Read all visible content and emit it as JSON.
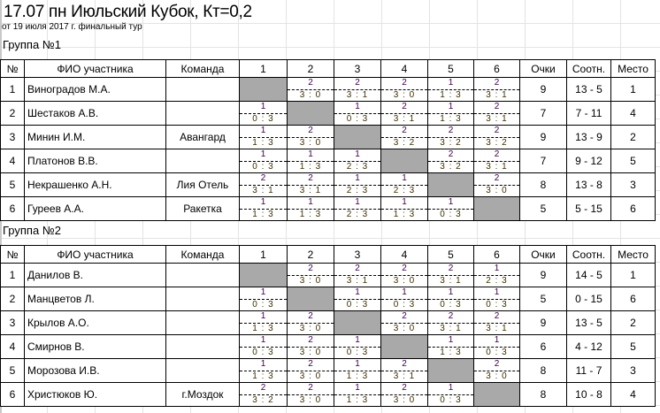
{
  "title": "17.07 пн Июльский Кубок, Кт=0,2",
  "subtitle": "от 19 июля 2017 г. финальный тур",
  "headers": {
    "num": "№",
    "name": "ФИО участника",
    "team": "Команда",
    "cols": [
      "1",
      "2",
      "3",
      "4",
      "5",
      "6"
    ],
    "points": "Очки",
    "ratio": "Соотн.",
    "place": "Место"
  },
  "colors": {
    "self_cell": "#a9a9a9",
    "points_text": "#3a0048",
    "score_text": "#3d3000"
  },
  "groups": [
    {
      "label": "Группа №1",
      "rows": [
        {
          "num": "1",
          "name": "Виноградов М.А.",
          "team": "",
          "results": [
            null,
            [
              "2",
              "3 : 0"
            ],
            [
              "2",
              "3 : 1"
            ],
            [
              "2",
              "3 : 0"
            ],
            [
              "1",
              "1 : 3"
            ],
            [
              "2",
              "3 : 1"
            ]
          ],
          "points": "9",
          "ratio": "13 - 5",
          "place": "1"
        },
        {
          "num": "2",
          "name": "Шестаков А.В.",
          "team": "",
          "results": [
            [
              "1",
              "0 : 3"
            ],
            null,
            [
              "1",
              "0 : 3"
            ],
            [
              "2",
              "3 : 1"
            ],
            [
              "1",
              "1 : 3"
            ],
            [
              "2",
              "3 : 1"
            ]
          ],
          "points": "7",
          "ratio": "7 - 11",
          "place": "4"
        },
        {
          "num": "3",
          "name": "Минин И.М.",
          "team": "Авангард",
          "results": [
            [
              "1",
              "1 : 3"
            ],
            [
              "2",
              "3 : 0"
            ],
            null,
            [
              "2",
              "3 : 2"
            ],
            [
              "2",
              "3 : 2"
            ],
            [
              "2",
              "3 : 2"
            ]
          ],
          "points": "9",
          "ratio": "13 - 9",
          "place": "2"
        },
        {
          "num": "4",
          "name": "Платонов В.В.",
          "team": "",
          "results": [
            [
              "1",
              "0 : 3"
            ],
            [
              "1",
              "1 : 3"
            ],
            [
              "1",
              "2 : 3"
            ],
            null,
            [
              "2",
              "3 : 2"
            ],
            [
              "2",
              "3 : 1"
            ]
          ],
          "points": "7",
          "ratio": "9 - 12",
          "place": "5"
        },
        {
          "num": "5",
          "name": "Некрашенко А.Н.",
          "team": "Лия Отель",
          "results": [
            [
              "2",
              "3 : 1"
            ],
            [
              "2",
              "3 : 1"
            ],
            [
              "1",
              "2 : 3"
            ],
            [
              "1",
              "2 : 3"
            ],
            null,
            [
              "2",
              "3 : 0"
            ]
          ],
          "points": "8",
          "ratio": "13 - 8",
          "place": "3"
        },
        {
          "num": "6",
          "name": "Гуреев А.А.",
          "team": "Ракетка",
          "results": [
            [
              "1",
              "1 : 3"
            ],
            [
              "1",
              "1 : 3"
            ],
            [
              "1",
              "2 : 3"
            ],
            [
              "1",
              "1 : 3"
            ],
            [
              "1",
              "0 : 3"
            ],
            null
          ],
          "points": "5",
          "ratio": "5 - 15",
          "place": "6"
        }
      ]
    },
    {
      "label": "Группа №2",
      "rows": [
        {
          "num": "1",
          "name": "Данилов В.",
          "team": "",
          "results": [
            null,
            [
              "2",
              "3 : 0"
            ],
            [
              "2",
              "3 : 1"
            ],
            [
              "2",
              "3 : 0"
            ],
            [
              "2",
              "3 : 1"
            ],
            [
              "1",
              "2 : 3"
            ]
          ],
          "points": "9",
          "ratio": "14 - 5",
          "place": "1"
        },
        {
          "num": "2",
          "name": "Манцветов Л.",
          "team": "",
          "results": [
            [
              "1",
              "0 : 3"
            ],
            null,
            [
              "1",
              "0 : 3"
            ],
            [
              "1",
              "0 : 3"
            ],
            [
              "1",
              "0 : 3"
            ],
            [
              "1",
              "0 : 3"
            ]
          ],
          "points": "5",
          "ratio": "0 - 15",
          "place": "6"
        },
        {
          "num": "3",
          "name": "Крылов А.О.",
          "team": "",
          "results": [
            [
              "1",
              "1 : 3"
            ],
            [
              "2",
              "3 : 0"
            ],
            null,
            [
              "2",
              "3 : 0"
            ],
            [
              "2",
              "3 : 1"
            ],
            [
              "2",
              "3 : 1"
            ]
          ],
          "points": "9",
          "ratio": "13 - 5",
          "place": "2"
        },
        {
          "num": "4",
          "name": "Смирнов В.",
          "team": "",
          "results": [
            [
              "1",
              "0 : 3"
            ],
            [
              "2",
              "3 : 0"
            ],
            [
              "1",
              "0 : 3"
            ],
            null,
            [
              "1",
              "1 : 3"
            ],
            [
              "1",
              "0 : 3"
            ]
          ],
          "points": "6",
          "ratio": "4 - 12",
          "place": "5"
        },
        {
          "num": "5",
          "name": "Морозова И.В.",
          "team": "",
          "results": [
            [
              "1",
              "1 : 3"
            ],
            [
              "2",
              "3 : 0"
            ],
            [
              "1",
              "1 : 3"
            ],
            [
              "2",
              "3 : 1"
            ],
            null,
            [
              "2",
              "3 : 0"
            ]
          ],
          "points": "8",
          "ratio": "11 - 7",
          "place": "3"
        },
        {
          "num": "6",
          "name": "Христюков Ю.",
          "team": "г.Моздок",
          "results": [
            [
              "2",
              "3 : 2"
            ],
            [
              "2",
              "3 : 0"
            ],
            [
              "1",
              "1 : 3"
            ],
            [
              "2",
              "3 : 0"
            ],
            [
              "1",
              "0 : 3"
            ],
            null
          ],
          "points": "8",
          "ratio": "10 - 8",
          "place": "4"
        }
      ]
    }
  ]
}
